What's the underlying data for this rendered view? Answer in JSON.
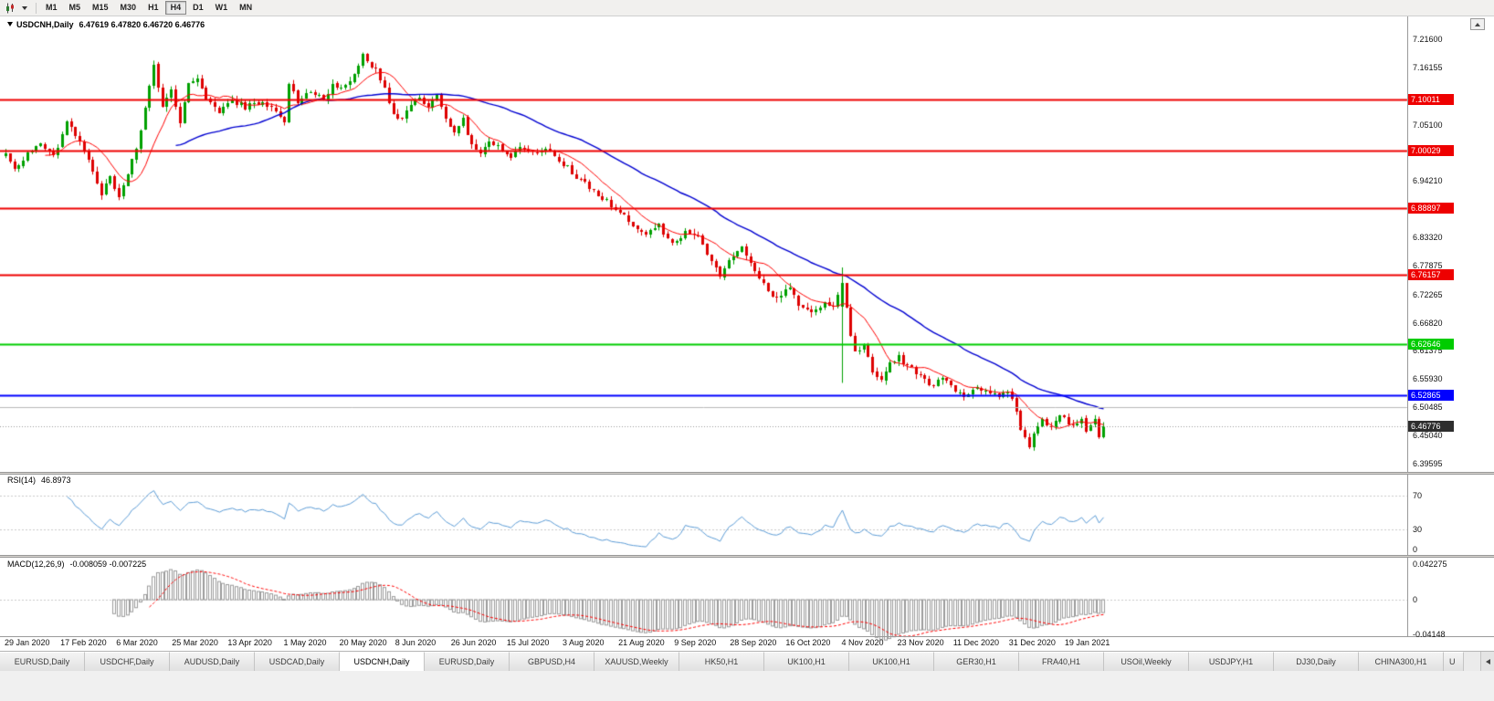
{
  "toolbar": {
    "timeframes": [
      "M1",
      "M5",
      "M15",
      "M30",
      "H1",
      "H4",
      "D1",
      "W1",
      "MN"
    ],
    "active_timeframe": "H4"
  },
  "chart": {
    "symbol_title": "USDCNH,Daily",
    "ohlc_text": "6.47619 6.47820 6.46720 6.46776",
    "price_ticks": [
      "7.21600",
      "7.16155",
      "7.05100",
      "6.94210",
      "6.83320",
      "6.77875",
      "6.72265",
      "6.66820",
      "6.61375",
      "6.55930",
      "6.50485",
      "6.45040",
      "6.39595"
    ],
    "levels": [
      {
        "label": "7.10011",
        "value": 7.10011,
        "color": "#ee0000",
        "width": 2
      },
      {
        "label": "7.00029",
        "value": 7.00029,
        "color": "#ee0000",
        "width": 2
      },
      {
        "label": "6.88897",
        "value": 6.88897,
        "color": "#ee0000",
        "width": 2
      },
      {
        "label": "6.76157",
        "value": 6.76157,
        "color": "#ee0000",
        "width": 2
      },
      {
        "label": "6.62646",
        "value": 6.62646,
        "color": "#00cc00",
        "width": 2
      },
      {
        "label": "6.52865",
        "value": 6.52865,
        "color": "#0000ff",
        "width": 2
      },
      {
        "label": "6.50485",
        "value": 6.50485,
        "color": "#b8b8b8",
        "width": 1,
        "no_badge": true
      }
    ],
    "last_price": {
      "label": "6.46776",
      "value": 6.46776,
      "color": "#2e2e2e"
    },
    "date_labels": [
      "29 Jan 2020",
      "17 Feb 2020",
      "6 Mar 2020",
      "25 Mar 2020",
      "13 Apr 2020",
      "1 May 2020",
      "20 May 2020",
      "8 Jun 2020",
      "26 Jun 2020",
      "15 Jul 2020",
      "3 Aug 2020",
      "21 Aug 2020",
      "9 Sep 2020",
      "28 Sep 2020",
      "16 Oct 2020",
      "4 Nov 2020",
      "23 Nov 2020",
      "11 Dec 2020",
      "31 Dec 2020",
      "19 Jan 2021"
    ],
    "colors": {
      "bull": "#00a000",
      "bear": "#dd0000",
      "ma_fast": "#ff0000",
      "ma_slow": "#0000d0",
      "rsi": "#5b9bd5",
      "rsi_levels": "#c8c8c8",
      "macd_bar": "#9a9a9a",
      "macd_signal": "#ff0000"
    }
  },
  "rsi": {
    "label": "RSI(14)",
    "value": "46.8973",
    "levels": [
      "70",
      "30",
      "0"
    ]
  },
  "macd": {
    "label": "MACD(12,26,9)",
    "values": "-0.008059 -0.007225",
    "axis": [
      "0.042275",
      "0",
      "-0.04148"
    ]
  },
  "tabbar": {
    "labels": [
      "EURUSD,Daily",
      "USDCHF,Daily",
      "AUDUSD,Daily",
      "USDCAD,Daily",
      "USDCNH,Daily",
      "EURUSD,Daily",
      "GBPUSD,H4",
      "XAUUSD,Weekly",
      "HK50,H1",
      "UK100,H1",
      "UK100,H1",
      "GER30,H1",
      "FRA40,H1",
      "USOil,Weekly",
      "USDJPY,H1",
      "DJ30,Daily",
      "CHINA300,H1",
      "U"
    ],
    "active_index": 4
  },
  "chart_data": {
    "type": "candlestick",
    "symbol": "USDCNH",
    "timeframe": "Daily",
    "title": "USDCNH,Daily",
    "bars": 253,
    "x_range": [
      "29 Jan 2020",
      "27 Jan 2021"
    ],
    "y_range": [
      6.3748,
      6.26
    ],
    "close_anchors": [
      [
        0,
        6.99
      ],
      [
        2,
        6.966
      ],
      [
        5,
        6.996
      ],
      [
        8,
        7.01
      ],
      [
        11,
        6.988
      ],
      [
        14,
        7.052
      ],
      [
        16,
        7.03
      ],
      [
        19,
        6.98
      ],
      [
        22,
        6.918
      ],
      [
        24,
        6.948
      ],
      [
        26,
        6.912
      ],
      [
        28,
        6.952
      ],
      [
        30,
        7.01
      ],
      [
        32,
        7.08
      ],
      [
        34,
        7.162
      ],
      [
        36,
        7.085
      ],
      [
        38,
        7.118
      ],
      [
        40,
        7.052
      ],
      [
        42,
        7.128
      ],
      [
        44,
        7.145
      ],
      [
        46,
        7.095
      ],
      [
        49,
        7.075
      ],
      [
        52,
        7.1
      ],
      [
        55,
        7.085
      ],
      [
        59,
        7.095
      ],
      [
        62,
        7.078
      ],
      [
        64,
        7.055
      ],
      [
        65,
        7.135
      ],
      [
        67,
        7.095
      ],
      [
        70,
        7.115
      ],
      [
        73,
        7.1
      ],
      [
        75,
        7.128
      ],
      [
        77,
        7.118
      ],
      [
        80,
        7.15
      ],
      [
        82,
        7.188
      ],
      [
        83,
        7.175
      ],
      [
        85,
        7.158
      ],
      [
        87,
        7.12
      ],
      [
        89,
        7.075
      ],
      [
        91,
        7.058
      ],
      [
        93,
        7.09
      ],
      [
        95,
        7.105
      ],
      [
        97,
        7.085
      ],
      [
        99,
        7.108
      ],
      [
        101,
        7.06
      ],
      [
        103,
        7.04
      ],
      [
        105,
        7.06
      ],
      [
        107,
        7.01
      ],
      [
        109,
        6.995
      ],
      [
        111,
        7.018
      ],
      [
        114,
        7.005
      ],
      [
        116,
        6.99
      ],
      [
        118,
        7.012
      ],
      [
        122,
        6.995
      ],
      [
        125,
        7.005
      ],
      [
        128,
        6.975
      ],
      [
        131,
        6.95
      ],
      [
        134,
        6.93
      ],
      [
        137,
        6.91
      ],
      [
        140,
        6.885
      ],
      [
        144,
        6.86
      ],
      [
        147,
        6.84
      ],
      [
        150,
        6.855
      ],
      [
        153,
        6.82
      ],
      [
        156,
        6.845
      ],
      [
        159,
        6.835
      ],
      [
        161,
        6.8
      ],
      [
        164,
        6.76
      ],
      [
        167,
        6.795
      ],
      [
        169,
        6.815
      ],
      [
        172,
        6.77
      ],
      [
        175,
        6.73
      ],
      [
        177,
        6.715
      ],
      [
        180,
        6.735
      ],
      [
        182,
        6.7
      ],
      [
        185,
        6.685
      ],
      [
        188,
        6.705
      ],
      [
        190,
        6.695
      ],
      [
        192,
        6.745
      ],
      [
        194,
        6.645
      ],
      [
        195,
        6.61
      ],
      [
        197,
        6.625
      ],
      [
        199,
        6.575
      ],
      [
        201,
        6.558
      ],
      [
        203,
        6.59
      ],
      [
        205,
        6.6
      ],
      [
        208,
        6.578
      ],
      [
        210,
        6.565
      ],
      [
        213,
        6.545
      ],
      [
        215,
        6.56
      ],
      [
        218,
        6.535
      ],
      [
        221,
        6.528
      ],
      [
        223,
        6.545
      ],
      [
        226,
        6.535
      ],
      [
        228,
        6.525
      ],
      [
        230,
        6.538
      ],
      [
        232,
        6.5
      ],
      [
        233,
        6.46
      ],
      [
        235,
        6.43
      ],
      [
        236,
        6.46
      ],
      [
        238,
        6.478
      ],
      [
        240,
        6.465
      ],
      [
        242,
        6.488
      ],
      [
        245,
        6.472
      ],
      [
        247,
        6.482
      ],
      [
        248,
        6.462
      ],
      [
        250,
        6.478
      ],
      [
        251,
        6.443
      ],
      [
        252,
        6.46776
      ]
    ],
    "special_bars": [
      {
        "i": 192,
        "o": 6.7,
        "h": 6.775,
        "l": 6.552,
        "c": 6.745
      }
    ],
    "indicators": [
      {
        "name": "SMA",
        "period": 10,
        "color": "#ff0000"
      },
      {
        "name": "SMA",
        "period": 40,
        "color": "#0000d0"
      },
      {
        "name": "RSI",
        "period": 14,
        "current": "46.8973"
      },
      {
        "name": "MACD",
        "fast": 12,
        "slow": 26,
        "signal": 9,
        "current": "-0.008059 -0.007225"
      }
    ],
    "horizontal_lines": [
      7.10011,
      7.00029,
      6.88897,
      6.76157,
      6.62646,
      6.52865,
      6.50485
    ],
    "last_close": 6.46776
  }
}
